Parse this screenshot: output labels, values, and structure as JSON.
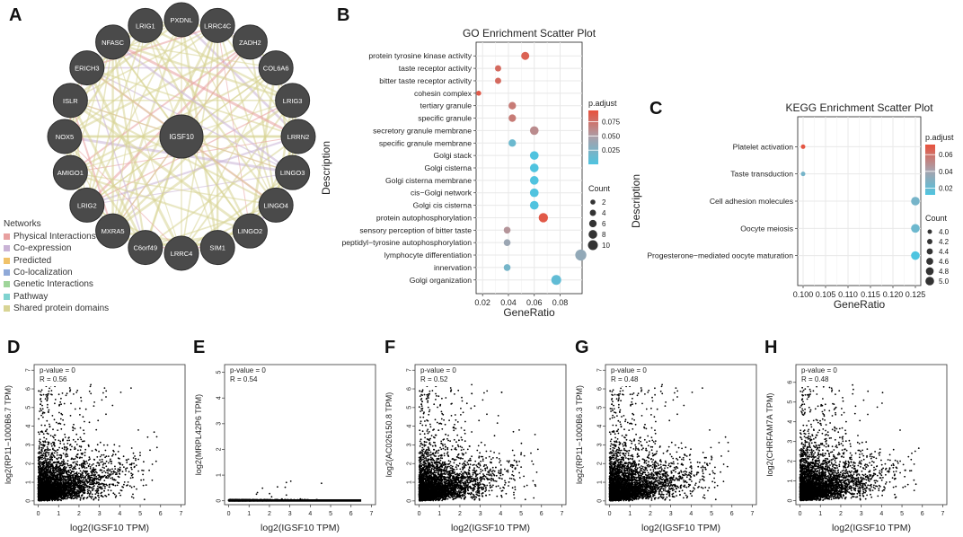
{
  "panel_labels": [
    "A",
    "B",
    "C",
    "D",
    "E",
    "F",
    "G",
    "H"
  ],
  "network": {
    "center": "IGSF10",
    "nodes": [
      "PXDNL",
      "LRRC4C",
      "ZADH2",
      "COL6A6",
      "LRIG3",
      "LRRN2",
      "LINGO3",
      "LINGO4",
      "LINGO2",
      "SIM1",
      "LRRC4",
      "C6orf49",
      "MXRA5",
      "LRIG2",
      "AMIGO1",
      "NOX5",
      "ISLR",
      "ERICH3",
      "NFASC",
      "LRIG1"
    ],
    "legend_title": "Networks",
    "legend": [
      {
        "label": "Physical Interactions",
        "color": "#e8a0a0"
      },
      {
        "label": "Co-expression",
        "color": "#c9b3d6"
      },
      {
        "label": "Predicted",
        "color": "#f0c26a"
      },
      {
        "label": "Co-localization",
        "color": "#8fa9d8"
      },
      {
        "label": "Genetic Interactions",
        "color": "#9fd59a"
      },
      {
        "label": "Pathway",
        "color": "#7fd3d0"
      },
      {
        "label": "Shared protein domains",
        "color": "#d8d494"
      }
    ]
  },
  "chart_data": [
    {
      "id": "B",
      "type": "scatter",
      "title": "GO Enrichment Scatter Plot",
      "xlabel": "GeneRatio",
      "ylabel": "Description",
      "xlim": [
        0.015,
        0.097
      ],
      "xticks": [
        0.02,
        0.04,
        0.06,
        0.08
      ],
      "xtick_labels": [
        "0.02",
        "0.04",
        "0.06",
        "0.08"
      ],
      "categories": [
        "protein tyrosine kinase activity",
        "taste receptor activity",
        "bitter taste receptor activity",
        "cohesin complex",
        "tertiary granule",
        "specific granule",
        "secretory granule membrane",
        "specific granule membrane",
        "Golgi stack",
        "Golgi cisterna",
        "Golgi cisterna membrane",
        "cis−Golgi network",
        "Golgi cis cisterna",
        "protein autophosphorylation",
        "sensory perception of bitter taste",
        "peptidyl−tyrosine autophosphorylation",
        "lymphocyte differentiation",
        "innervation",
        "Golgi organization"
      ],
      "gene_ratio": [
        0.053,
        0.032,
        0.032,
        0.017,
        0.043,
        0.043,
        0.06,
        0.043,
        0.06,
        0.06,
        0.06,
        0.06,
        0.06,
        0.067,
        0.039,
        0.039,
        0.096,
        0.039,
        0.077
      ],
      "count": [
        7,
        4,
        4,
        2,
        6,
        6,
        8,
        6,
        8,
        8,
        8,
        8,
        8,
        9,
        5,
        5,
        12,
        5,
        10
      ],
      "p_adjust": [
        0.085,
        0.08,
        0.08,
        0.09,
        0.07,
        0.07,
        0.06,
        0.015,
        0.001,
        0.001,
        0.001,
        0.001,
        0.001,
        0.09,
        0.055,
        0.04,
        0.035,
        0.02,
        0.01
      ],
      "color_legend": {
        "title": "p.adjust",
        "ticks": [
          0.075,
          0.05,
          0.025
        ],
        "tick_labels": [
          "0.075",
          "0.050",
          "0.025"
        ],
        "range": [
          0.0,
          0.095
        ],
        "low_color": "#4ec4e0",
        "high_color": "#e8513c"
      },
      "size_legend": {
        "title": "Count",
        "values": [
          2,
          4,
          6,
          8,
          10
        ],
        "labels": [
          "2",
          "4",
          "6",
          "8",
          "10"
        ]
      }
    },
    {
      "id": "C",
      "type": "scatter",
      "title": "KEGG Enrichment Scatter Plot",
      "xlabel": "GeneRatio",
      "ylabel": "Description",
      "xlim": [
        0.0988,
        0.1262
      ],
      "xticks": [
        0.1,
        0.105,
        0.11,
        0.115,
        0.12,
        0.125
      ],
      "xtick_labels": [
        "0.100",
        "0.105",
        "0.110",
        "0.115",
        "0.120",
        "0.125"
      ],
      "categories": [
        "Platelet activation",
        "Taste transduction",
        "Cell adhesion molecules",
        "Oocyte meiosis",
        "Progesterone−mediated oocyte maturation"
      ],
      "gene_ratio": [
        0.1,
        0.1,
        0.125,
        0.125,
        0.125
      ],
      "count": [
        4,
        4,
        5,
        5,
        5
      ],
      "p_adjust": [
        0.07,
        0.025,
        0.025,
        0.022,
        0.012
      ],
      "color_legend": {
        "title": "p.adjust",
        "ticks": [
          0.06,
          0.04,
          0.02
        ],
        "tick_labels": [
          "0.06",
          "0.04",
          "0.02"
        ],
        "range": [
          0.012,
          0.072
        ],
        "low_color": "#4ec4e0",
        "high_color": "#e8513c"
      },
      "size_legend": {
        "title": "Count",
        "values": [
          4.0,
          4.2,
          4.4,
          4.6,
          4.8,
          5.0
        ],
        "labels": [
          "4.0",
          "4.2",
          "4.4",
          "4.6",
          "4.8",
          "5.0"
        ]
      }
    },
    {
      "id": "D",
      "type": "scatter",
      "xlabel": "log2(IGSF10 TPM)",
      "ylabel": "log2(RP11−1000B6.7 TPM)",
      "annotation": [
        "p-value = 0",
        "R = 0.56"
      ],
      "xlim": [
        -0.2,
        7.2
      ],
      "ylim": [
        -0.2,
        7.3
      ],
      "xticks": [
        0,
        1,
        2,
        3,
        4,
        5,
        6,
        7
      ],
      "yticks": [
        0,
        1,
        2,
        3,
        4,
        5,
        6,
        7
      ],
      "r": 0.56,
      "floor_band": false,
      "note": "dense scatter of several thousand samples; individual points not readable"
    },
    {
      "id": "E",
      "type": "scatter",
      "xlabel": "log2(IGSF10 TPM)",
      "ylabel": "log2(MRPL42P6 TPM)",
      "annotation": [
        "p-value = 0",
        "R = 0.54"
      ],
      "xlim": [
        -0.2,
        7.2
      ],
      "ylim": [
        -0.15,
        5.3
      ],
      "xticks": [
        0,
        1,
        2,
        3,
        4,
        5,
        6,
        7
      ],
      "yticks": [
        0,
        1,
        2,
        3,
        4,
        5
      ],
      "r": 0.54,
      "floor_band": true,
      "note": "most samples at 0 forming a horizontal band; individual points not readable"
    },
    {
      "id": "F",
      "type": "scatter",
      "xlabel": "log2(IGSF10 TPM)",
      "ylabel": "log2(AC026150.8 TPM)",
      "annotation": [
        "p-value = 0",
        "R = 0.52"
      ],
      "xlim": [
        -0.2,
        7.2
      ],
      "ylim": [
        -0.2,
        7.3
      ],
      "xticks": [
        0,
        1,
        2,
        3,
        4,
        5,
        6,
        7
      ],
      "yticks": [
        0,
        1,
        2,
        3,
        4,
        5,
        6,
        7
      ],
      "r": 0.52,
      "floor_band": false,
      "note": "dense scatter of several thousand samples; individual points not readable"
    },
    {
      "id": "G",
      "type": "scatter",
      "xlabel": "log2(IGSF10 TPM)",
      "ylabel": "log2(RP11−1000B6.3 TPM)",
      "annotation": [
        "p-value = 0",
        "R = 0.48"
      ],
      "xlim": [
        -0.2,
        7.2
      ],
      "ylim": [
        -0.2,
        7.3
      ],
      "xticks": [
        0,
        1,
        2,
        3,
        4,
        5,
        6,
        7
      ],
      "yticks": [
        0,
        1,
        2,
        3,
        4,
        5,
        6,
        7
      ],
      "r": 0.48,
      "floor_band": false,
      "note": "dense scatter of several thousand samples; individual points not readable"
    },
    {
      "id": "H",
      "type": "scatter",
      "xlabel": "log2(IGSF10 TPM)",
      "ylabel": "log2(CHRFAM7A TPM)",
      "annotation": [
        "p-value = 0",
        "R = 0.48"
      ],
      "xlim": [
        -0.2,
        7.2
      ],
      "ylim": [
        -0.2,
        6.9
      ],
      "xticks": [
        0,
        1,
        2,
        3,
        4,
        5,
        6,
        7
      ],
      "yticks": [
        0,
        1,
        2,
        3,
        4,
        5,
        6
      ],
      "r": 0.48,
      "floor_band": false,
      "note": "dense scatter of several thousand samples; individual points not readable"
    }
  ]
}
